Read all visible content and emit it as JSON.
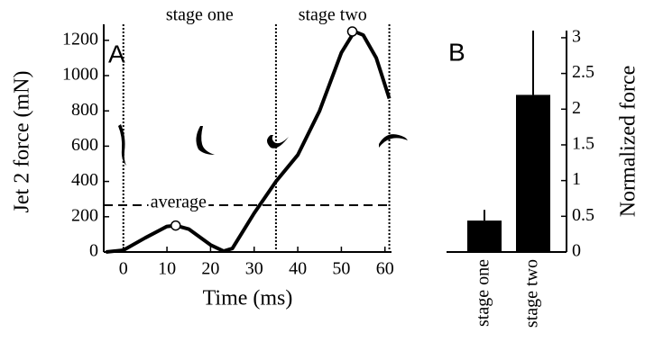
{
  "chart_data": [
    {
      "type": "line",
      "panel": "A",
      "xlabel": "Time (ms)",
      "ylabel": "Jet 2 force (mN)",
      "x": [
        -4,
        0,
        5,
        10,
        12,
        15,
        20,
        23,
        25,
        30,
        35,
        40,
        45,
        50,
        53,
        55,
        58,
        61
      ],
      "values": [
        0,
        10,
        80,
        145,
        150,
        130,
        40,
        5,
        20,
        220,
        400,
        550,
        800,
        1130,
        1250,
        1230,
        1100,
        870
      ],
      "color": "#000000",
      "xlim": [
        -4.5,
        61.5
      ],
      "ylim": [
        0,
        1250
      ],
      "xticks": [
        0,
        10,
        20,
        30,
        40,
        50,
        60
      ],
      "yticks": [
        0,
        200,
        400,
        600,
        800,
        1000,
        1200
      ],
      "stage_lines": [
        0,
        35,
        61
      ],
      "stage_labels": [
        "stage one",
        "stage two"
      ],
      "average": {
        "label": "average",
        "value": 265
      },
      "highlight_points": [
        {
          "x": 12,
          "y": 150
        },
        {
          "x": 52.5,
          "y": 1250
        }
      ]
    },
    {
      "type": "bar",
      "panel": "B",
      "ylabel": "Normalized force",
      "categories": [
        "stage one",
        "stage two"
      ],
      "values": [
        0.44,
        2.2
      ],
      "errors": [
        0.15,
        0.9
      ],
      "color": "#000000",
      "ylim": [
        0,
        3.1
      ],
      "yticks": [
        0,
        0.5,
        1,
        1.5,
        2,
        2.5,
        3
      ]
    }
  ]
}
